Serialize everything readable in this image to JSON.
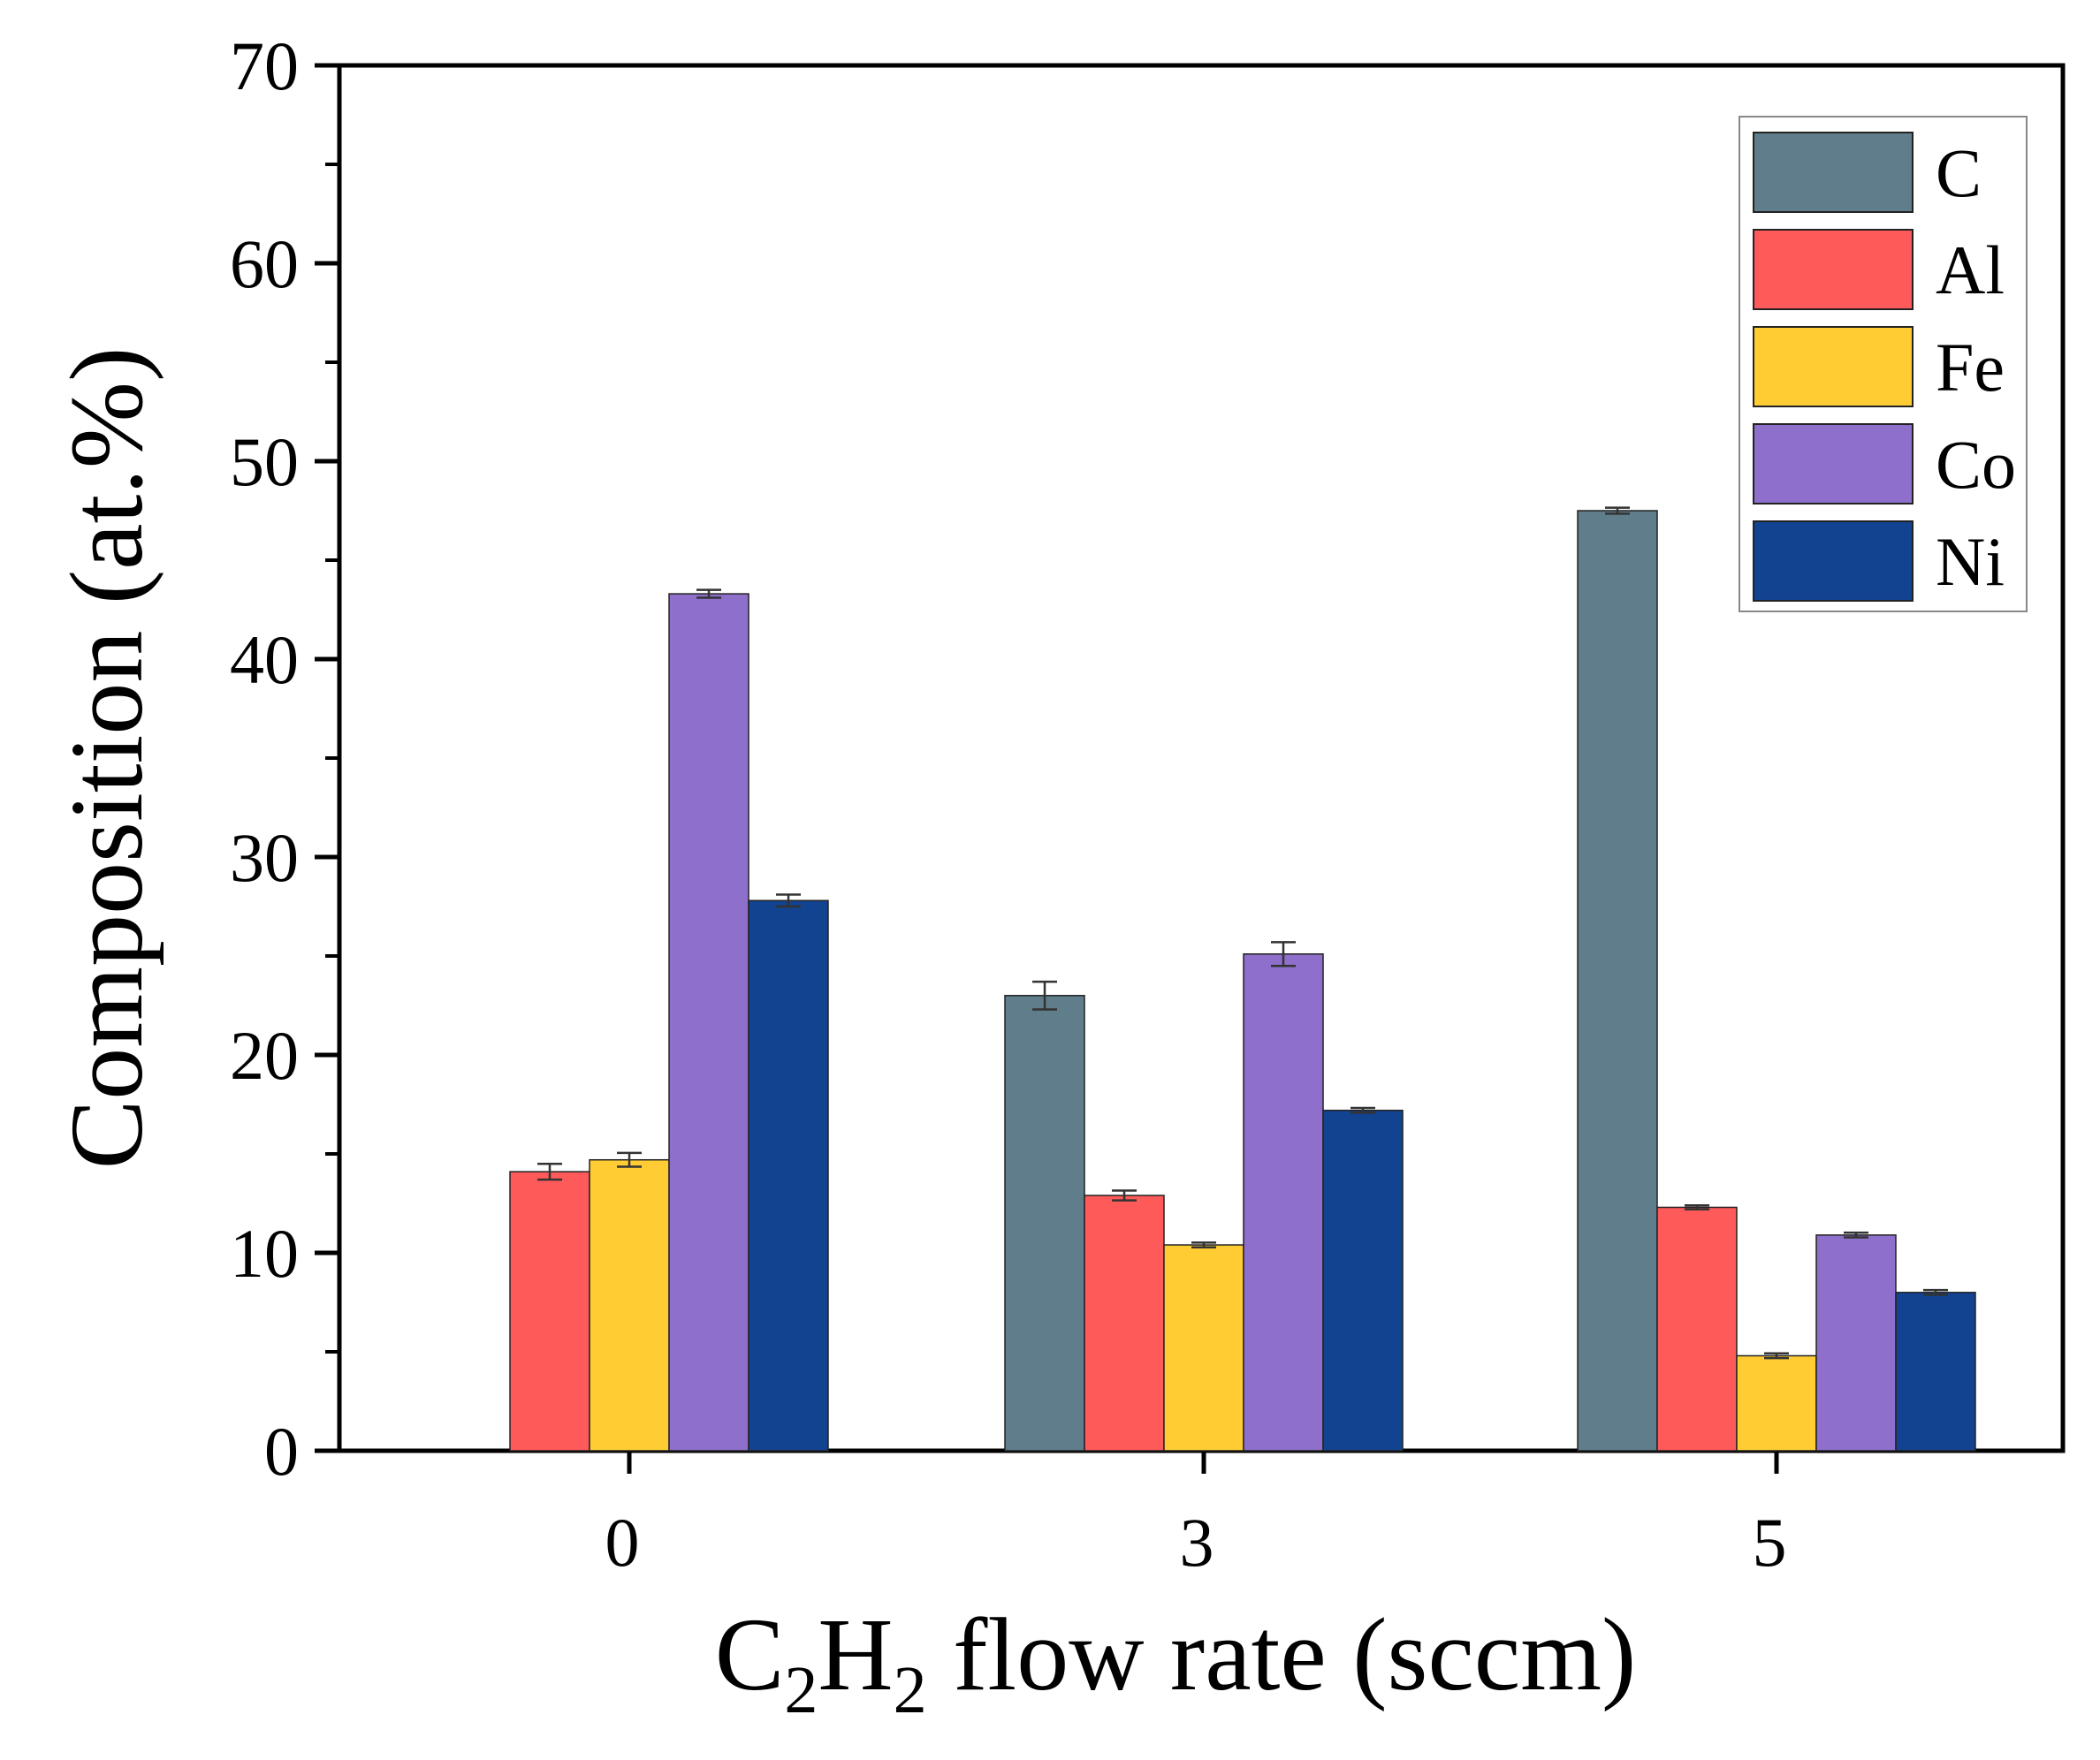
{
  "chart_data": {
    "type": "bar",
    "title": "",
    "xlabel_main": "C",
    "xlabel_sub1": "2",
    "xlabel_mid": "H",
    "xlabel_sub2": "2",
    "xlabel_rest": " flow rate (sccm)",
    "ylabel": "Composition (at.%)",
    "ylim": [
      0,
      70
    ],
    "yticks": [
      "0",
      "10",
      "20",
      "30",
      "40",
      "50",
      "60",
      "70"
    ],
    "categories": [
      "0",
      "3",
      "5"
    ],
    "legend_position": "top-right",
    "series": [
      {
        "name": "C",
        "color": "#5F7D8A",
        "values": [
          null,
          23.0,
          47.5
        ],
        "errors": [
          null,
          0.7,
          0.15
        ]
      },
      {
        "name": "Al",
        "color": "#FF5A5A",
        "values": [
          14.1,
          12.9,
          12.3
        ],
        "errors": [
          0.4,
          0.25,
          0.1
        ]
      },
      {
        "name": "Fe",
        "color": "#FFCC33",
        "values": [
          14.7,
          10.4,
          4.8
        ],
        "errors": [
          0.35,
          0.12,
          0.12
        ]
      },
      {
        "name": "Co",
        "color": "#8E6FCB",
        "values": [
          43.3,
          25.1,
          10.9
        ],
        "errors": [
          0.2,
          0.6,
          0.12
        ]
      },
      {
        "name": "Ni",
        "color": "#124391",
        "values": [
          27.8,
          17.2,
          8.0
        ],
        "errors": [
          0.3,
          0.12,
          0.12
        ]
      }
    ]
  }
}
